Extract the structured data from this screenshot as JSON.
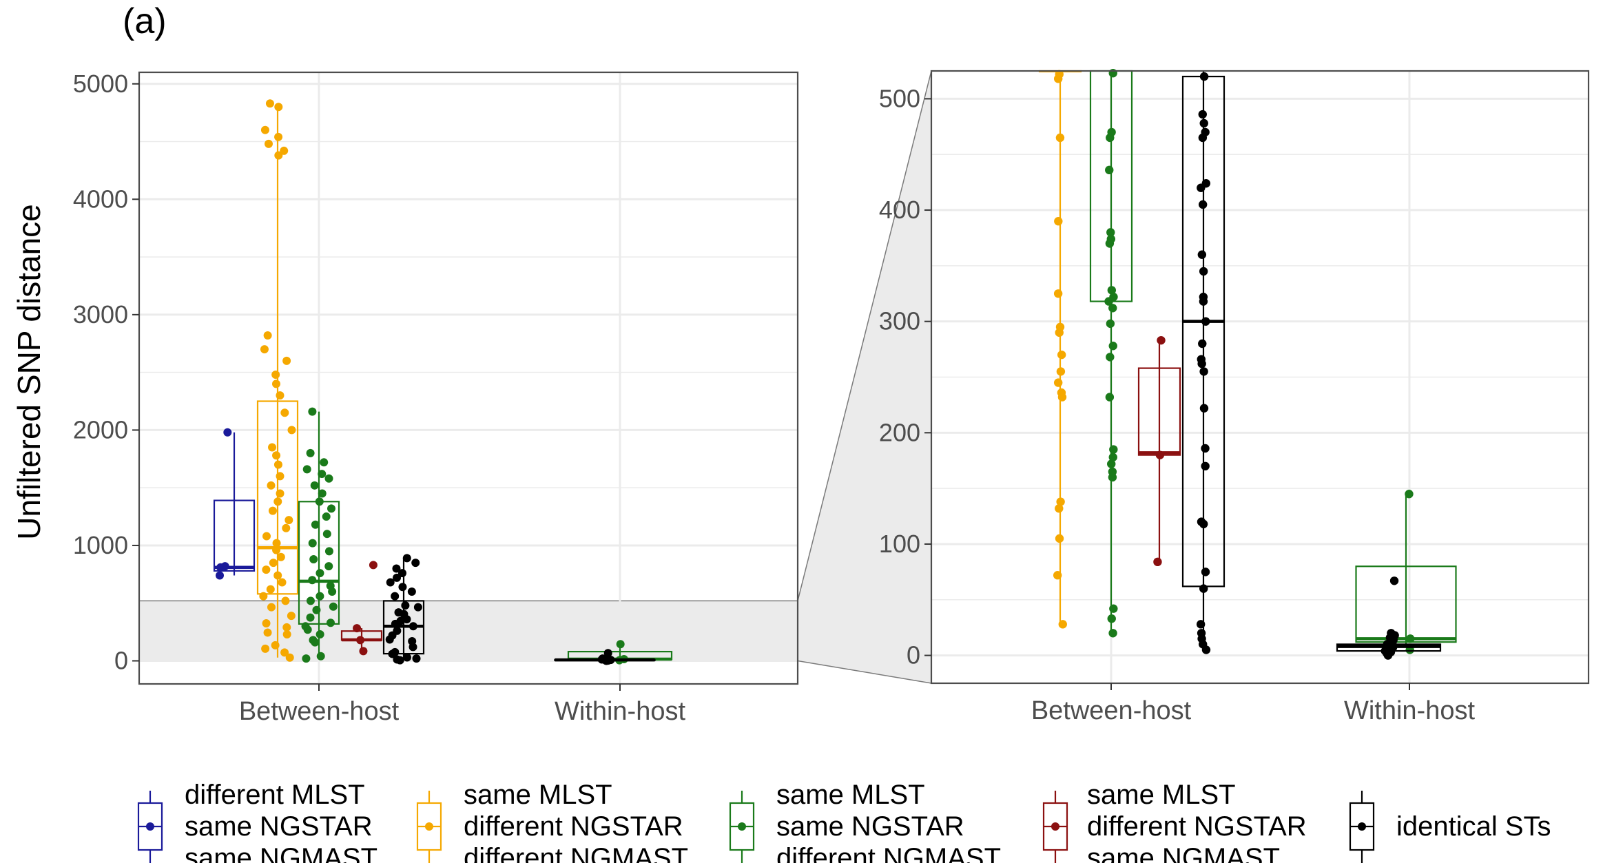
{
  "figure": {
    "panel_label": "(a)",
    "ylabel": "Unfiltered SNP distance"
  },
  "legend": [
    {
      "lines": [
        "different MLST",
        "same NGSTAR",
        "same NGMAST"
      ],
      "color": "#1a1a9a"
    },
    {
      "lines": [
        "same MLST",
        "different NGSTAR",
        "different NGMAST"
      ],
      "color": "#f5a800"
    },
    {
      "lines": [
        "same MLST",
        "same NGSTAR",
        "different NGMAST"
      ],
      "color": "#1a7a1a"
    },
    {
      "lines": [
        "same MLST",
        "different NGSTAR",
        "same NGMAST"
      ],
      "color": "#8b1010"
    },
    {
      "lines": [
        "identical STs"
      ],
      "color": "#000000"
    }
  ],
  "chart_data": [
    {
      "type": "box",
      "categories": [
        "Between-host",
        "Within-host"
      ],
      "ylim": [
        -200,
        5100
      ],
      "yticks": [
        0,
        1000,
        2000,
        3000,
        4000,
        5000
      ],
      "grid": true,
      "zoom_region": [
        0,
        520
      ],
      "series": [
        {
          "name": "different MLST same NGSTAR same NGMAST",
          "category": "Between-host",
          "color": "#1a1a9a",
          "box": {
            "min": 740,
            "q1": 780,
            "median": 810,
            "q3": 1390,
            "max": 1980
          },
          "points": [
            740,
            820,
            810,
            1980
          ]
        },
        {
          "name": "same MLST different NGSTAR different NGMAST",
          "category": "Between-host",
          "color": "#f5a800",
          "box": {
            "min": 28,
            "q1": 580,
            "median": 980,
            "q3": 2250,
            "max": 4820
          },
          "points": [
            28,
            72,
            105,
            135,
            230,
            245,
            290,
            325,
            390,
            465,
            520,
            560,
            620,
            680,
            740,
            790,
            850,
            900,
            960,
            1020,
            1080,
            1150,
            1220,
            1300,
            1380,
            1450,
            1520,
            1600,
            1700,
            1780,
            1850,
            2000,
            2150,
            2300,
            2400,
            2480,
            2600,
            2700,
            2820,
            4380,
            4420,
            4480,
            4540,
            4600,
            4800,
            4830
          ]
        },
        {
          "name": "same MLST same NGSTAR different NGMAST",
          "category": "Between-host",
          "color": "#1a7a1a",
          "box": {
            "min": 20,
            "q1": 320,
            "median": 690,
            "q3": 1380,
            "max": 2160
          },
          "points": [
            20,
            40,
            160,
            180,
            230,
            270,
            300,
            330,
            375,
            440,
            470,
            520,
            560,
            600,
            650,
            700,
            760,
            820,
            880,
            950,
            1020,
            1100,
            1180,
            1250,
            1320,
            1380,
            1450,
            1520,
            1580,
            1620,
            1660,
            1720,
            1800,
            2160
          ]
        },
        {
          "name": "same MLST different NGSTAR same NGMAST",
          "category": "Between-host",
          "color": "#8b1010",
          "box": {
            "min": 84,
            "q1": 180,
            "median": 182,
            "q3": 258,
            "max": 283
          },
          "points": [
            84,
            180,
            283,
            830
          ]
        },
        {
          "name": "identical STs",
          "category": "Between-host",
          "color": "#000000",
          "box": {
            "min": 5,
            "q1": 62,
            "median": 300,
            "q3": 520,
            "max": 890
          },
          "points": [
            5,
            12,
            20,
            30,
            60,
            75,
            120,
            170,
            185,
            220,
            260,
            300,
            320,
            345,
            360,
            405,
            420,
            465,
            480,
            560,
            600,
            640,
            680,
            720,
            760,
            800,
            850,
            890
          ]
        },
        {
          "name": "same MLST same NGSTAR different NGMAST",
          "category": "Within-host",
          "color": "#1a7a1a",
          "box": {
            "min": 10,
            "q1": 12,
            "median": 15,
            "q3": 80,
            "max": 145
          },
          "points": [
            5,
            15,
            145
          ]
        },
        {
          "name": "identical STs",
          "category": "Within-host",
          "color": "#000000",
          "box": {
            "min": 0,
            "q1": 4,
            "median": 8,
            "q3": 10,
            "max": 20
          },
          "points": [
            0,
            2,
            4,
            6,
            8,
            10,
            12,
            15,
            18,
            20,
            67
          ]
        }
      ]
    },
    {
      "type": "box",
      "categories": [
        "Between-host",
        "Within-host"
      ],
      "ylim": [
        -25,
        525
      ],
      "yticks": [
        0,
        100,
        200,
        300,
        400,
        500
      ],
      "grid": true,
      "series": [
        {
          "name": "same MLST different NGSTAR different NGMAST",
          "category": "Between-host",
          "color": "#f5a800",
          "box": {
            "min": 28,
            "q1": 580,
            "median": 980,
            "q3": 2250,
            "max": 4820
          },
          "points": [
            28,
            72,
            105,
            132,
            138,
            232,
            236,
            245,
            255,
            270,
            290,
            295,
            325,
            390,
            465,
            518,
            522
          ]
        },
        {
          "name": "same MLST same NGSTAR different NGMAST",
          "category": "Between-host",
          "color": "#1a7a1a",
          "box": {
            "min": 20,
            "q1": 318,
            "median": 690,
            "q3": 1380,
            "max": 2160
          },
          "points": [
            20,
            33,
            42,
            160,
            165,
            172,
            178,
            185,
            232,
            268,
            278,
            298,
            312,
            318,
            322,
            328,
            370,
            374,
            380,
            436,
            465,
            470,
            523
          ]
        },
        {
          "name": "same MLST different NGSTAR same NGMAST",
          "category": "Between-host",
          "color": "#8b1010",
          "box": {
            "min": 84,
            "q1": 180,
            "median": 182,
            "q3": 258,
            "max": 283
          },
          "points": [
            84,
            180,
            283
          ]
        },
        {
          "name": "identical STs",
          "category": "Between-host",
          "color": "#000000",
          "box": {
            "min": 5,
            "q1": 62,
            "median": 300,
            "q3": 520,
            "max": 890
          },
          "points": [
            5,
            10,
            15,
            20,
            28,
            60,
            75,
            118,
            120,
            170,
            186,
            222,
            255,
            262,
            266,
            280,
            300,
            318,
            322,
            345,
            360,
            405,
            420,
            424,
            465,
            470,
            478,
            486,
            520
          ]
        },
        {
          "name": "same MLST same NGSTAR different NGMAST",
          "category": "Within-host",
          "color": "#1a7a1a",
          "box": {
            "min": 10,
            "q1": 12,
            "median": 15,
            "q3": 80,
            "max": 145
          },
          "points": [
            5,
            15,
            145
          ]
        },
        {
          "name": "identical STs",
          "category": "Within-host",
          "color": "#000000",
          "box": {
            "min": 0,
            "q1": 4,
            "median": 8,
            "q3": 10,
            "max": 20
          },
          "points": [
            0,
            2,
            3,
            4,
            5,
            6,
            7,
            8,
            9,
            10,
            12,
            14,
            16,
            18,
            20,
            67
          ]
        }
      ]
    }
  ]
}
